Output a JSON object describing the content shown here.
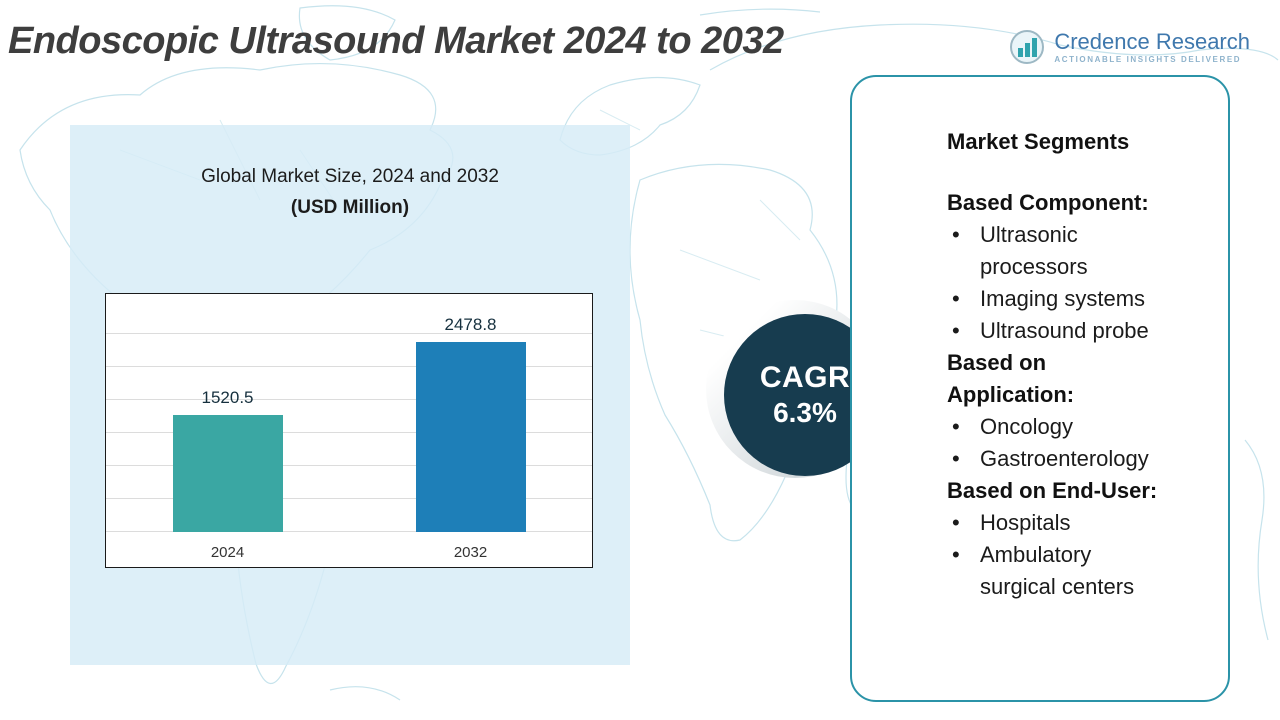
{
  "page_title": "Endoscopic Ultrasound Market 2024 to 2032",
  "logo": {
    "name": "Credence Research",
    "tagline": "Actionable Insights Delivered"
  },
  "chart_data": {
    "type": "bar",
    "title": "Global Market Size,  2024 and 2032",
    "subtitle": "(USD Million)",
    "categories": [
      "2024",
      "2032"
    ],
    "values": [
      1520.5,
      2478.8
    ],
    "value_labels": [
      "1520.5",
      "2478.8"
    ],
    "bar_colors": [
      "#3aa7a3",
      "#1e7fb8"
    ],
    "ylim": [
      0,
      3000
    ],
    "grid": true,
    "legend": "none"
  },
  "cagr": {
    "label": "CAGR",
    "value": "6.3%",
    "circle_color": "#173c4f"
  },
  "segments_panel": {
    "title": "Market Segments",
    "groups": [
      {
        "heading": "Based Component:",
        "items": [
          "Ultrasonic processors",
          "Imaging systems",
          "Ultrasound probe"
        ]
      },
      {
        "heading": "Based on Application:",
        "items": [
          "Oncology",
          "Gastroenterology"
        ]
      },
      {
        "heading": "Based on End-User:",
        "items": [
          "Hospitals",
          "Ambulatory surgical centers"
        ]
      }
    ]
  },
  "colors": {
    "accent_border": "#2b93a8",
    "panel_background": "#d6ecf6",
    "map_line": "#c6e3ec",
    "title_text": "#3e3e3e",
    "logo_blue": "#3f78ad"
  }
}
